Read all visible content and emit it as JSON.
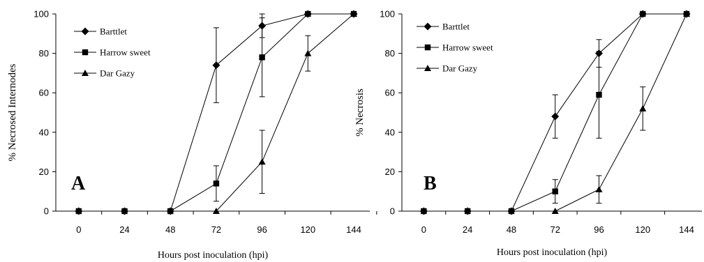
{
  "chart_data": [
    {
      "type": "line",
      "panel_label": "A",
      "xlabel": "Hours post  inoculation (hpi)",
      "ylabel": "% Necrosed Internodes",
      "categories": [
        "0",
        "24",
        "48",
        "72",
        "96",
        "120",
        "144"
      ],
      "y_ticks": [
        "0",
        "20",
        "40",
        "60",
        "80",
        "100"
      ],
      "ylim": [
        0,
        100
      ],
      "grid": false,
      "legend_position": "top-left",
      "series": [
        {
          "name": "Barttlet",
          "marker": "diamond",
          "x": [
            0,
            24,
            48,
            72,
            96,
            120,
            144
          ],
          "values": [
            0,
            0,
            0,
            74,
            94,
            100,
            100
          ],
          "error": [
            0,
            0,
            0,
            19,
            6,
            0,
            0
          ]
        },
        {
          "name": "Harrow sweet",
          "marker": "square",
          "x": [
            0,
            24,
            48,
            72,
            96,
            120,
            144
          ],
          "values": [
            0,
            0,
            0,
            14,
            78,
            100,
            100
          ],
          "error": [
            0,
            0,
            0,
            9,
            20,
            0,
            0
          ]
        },
        {
          "name": "Dar Gazy",
          "marker": "triangle",
          "x": [
            72,
            96,
            120,
            144
          ],
          "values": [
            0,
            25,
            80,
            100
          ],
          "error": [
            0,
            16,
            9,
            0
          ]
        }
      ]
    },
    {
      "type": "line",
      "panel_label": "B",
      "xlabel": "Hours post inoculation (hpi)",
      "ylabel": "% Necrosis",
      "categories": [
        "0",
        "24",
        "48",
        "72",
        "96",
        "120",
        "144"
      ],
      "y_ticks": [
        "0",
        "20",
        "40",
        "60",
        "80",
        "100"
      ],
      "ylim": [
        0,
        100
      ],
      "grid": false,
      "legend_position": "top-left",
      "series": [
        {
          "name": "Barttlet",
          "marker": "diamond",
          "x": [
            0,
            24,
            48,
            72,
            96,
            120,
            144
          ],
          "values": [
            0,
            0,
            0,
            48,
            80,
            100,
            100
          ],
          "error": [
            0,
            0,
            0,
            11,
            7,
            0,
            0
          ]
        },
        {
          "name": "Harrow sweet",
          "marker": "square",
          "x": [
            0,
            24,
            48,
            72,
            96,
            120,
            144
          ],
          "values": [
            0,
            0,
            0,
            10,
            59,
            100,
            100
          ],
          "error": [
            0,
            0,
            0,
            6,
            22,
            0,
            0
          ]
        },
        {
          "name": "Dar Gazy",
          "marker": "triangle",
          "x": [
            72,
            96,
            120,
            144
          ],
          "values": [
            0,
            11,
            52,
            100
          ],
          "error": [
            0,
            7,
            11,
            0
          ]
        }
      ]
    }
  ]
}
